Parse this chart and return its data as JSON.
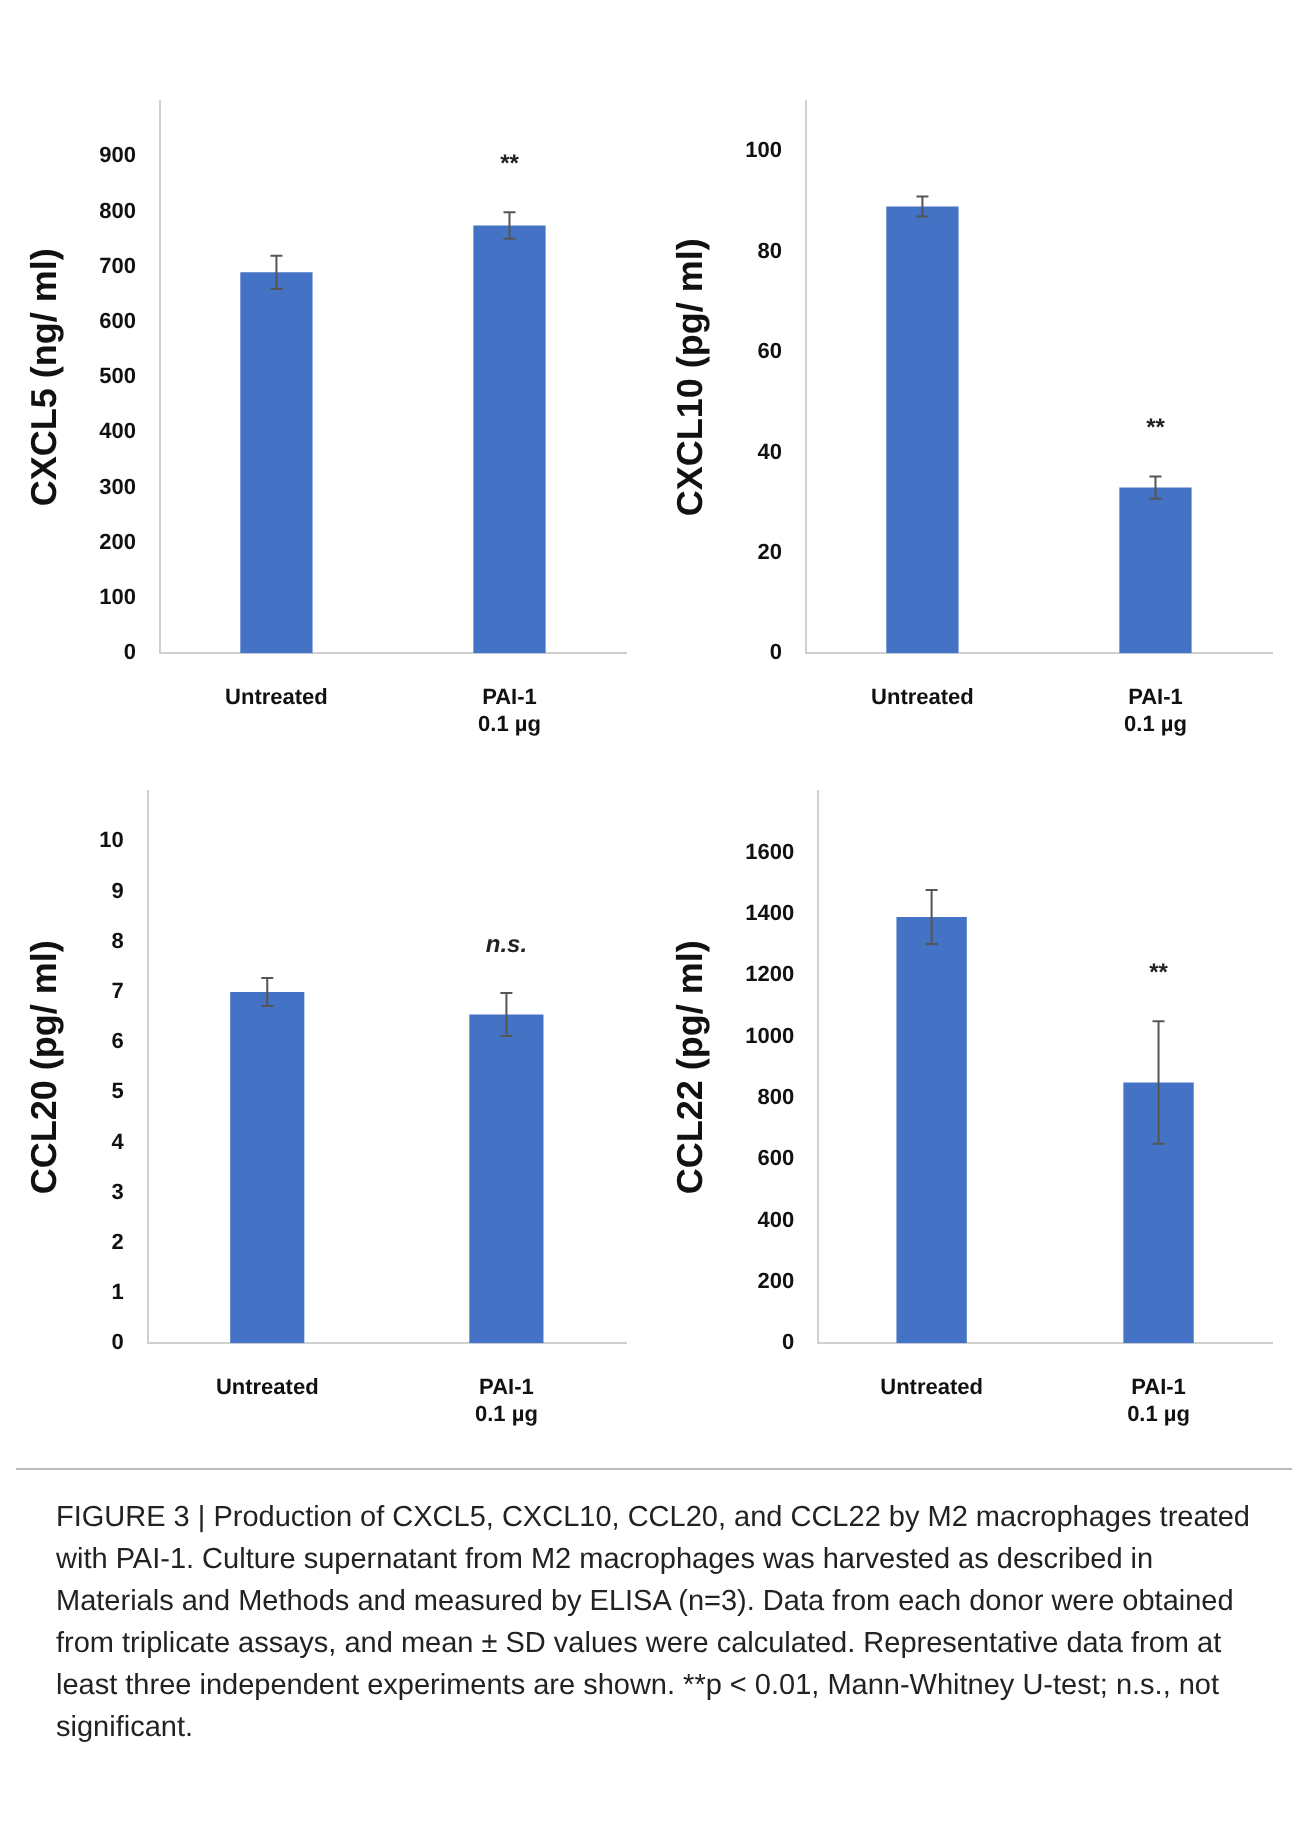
{
  "chart_data": [
    {
      "type": "bar",
      "ylabel": "CXCL5 (ng/ ml)",
      "categories": [
        "Untreated",
        "PAI-1\n0.1 µg"
      ],
      "values": [
        690,
        775
      ],
      "errors": [
        30,
        24
      ],
      "color": "#4472c4",
      "ylim": [
        0,
        1000
      ],
      "yticks": [
        0,
        100,
        200,
        300,
        400,
        500,
        600,
        700,
        800,
        900
      ],
      "annotations": [
        "**"
      ]
    },
    {
      "type": "bar",
      "ylabel": "CXCL10 (pg/ ml)",
      "categories": [
        "Untreated",
        "PAI-1\n0.1 µg"
      ],
      "values": [
        89,
        33
      ],
      "errors": [
        2,
        2.2
      ],
      "color": "#4472c4",
      "ylim": [
        0,
        110
      ],
      "yticks": [
        0,
        20,
        40,
        60,
        80,
        100
      ],
      "annotations": [
        "**"
      ]
    },
    {
      "type": "bar",
      "ylabel": "CCL20 (pg/ ml)",
      "categories": [
        "Untreated",
        "PAI-1\n0.1 µg"
      ],
      "values": [
        7.0,
        6.55
      ],
      "errors": [
        0.28,
        0.43
      ],
      "color": "#4472c4",
      "ylim": [
        0,
        11
      ],
      "yticks": [
        0,
        1,
        2,
        3,
        4,
        5,
        6,
        7,
        8,
        9,
        10
      ],
      "annotations": [
        "n.s."
      ]
    },
    {
      "type": "bar",
      "ylabel": "CCL22 (pg/ ml)",
      "categories": [
        "Untreated",
        "PAI-1\n0.1 µg"
      ],
      "values": [
        1390,
        850
      ],
      "errors": [
        88,
        200
      ],
      "color": "#4472c4",
      "ylim": [
        0,
        1800
      ],
      "yticks": [
        0,
        200,
        400,
        600,
        800,
        1000,
        1200,
        1400,
        1600
      ],
      "annotations": [
        "**",
        "FIGURE 3 | Production of CXCL5, CXCL10, CCL20, and CCL22 by M2 macrophages treated with PAI-1. Culture supernatant from M2 macrophages was harvested as described in Materials and Methods and measured by ELISA (n=3). Data from each donor were obtained from triplicate assays, and mean ± SD values were calculated. Representative data from at least three independent experiments are shown. **p < 0.01, Mann-Whitney U-test; n.s., not significant."
      ]
    }
  ]
}
